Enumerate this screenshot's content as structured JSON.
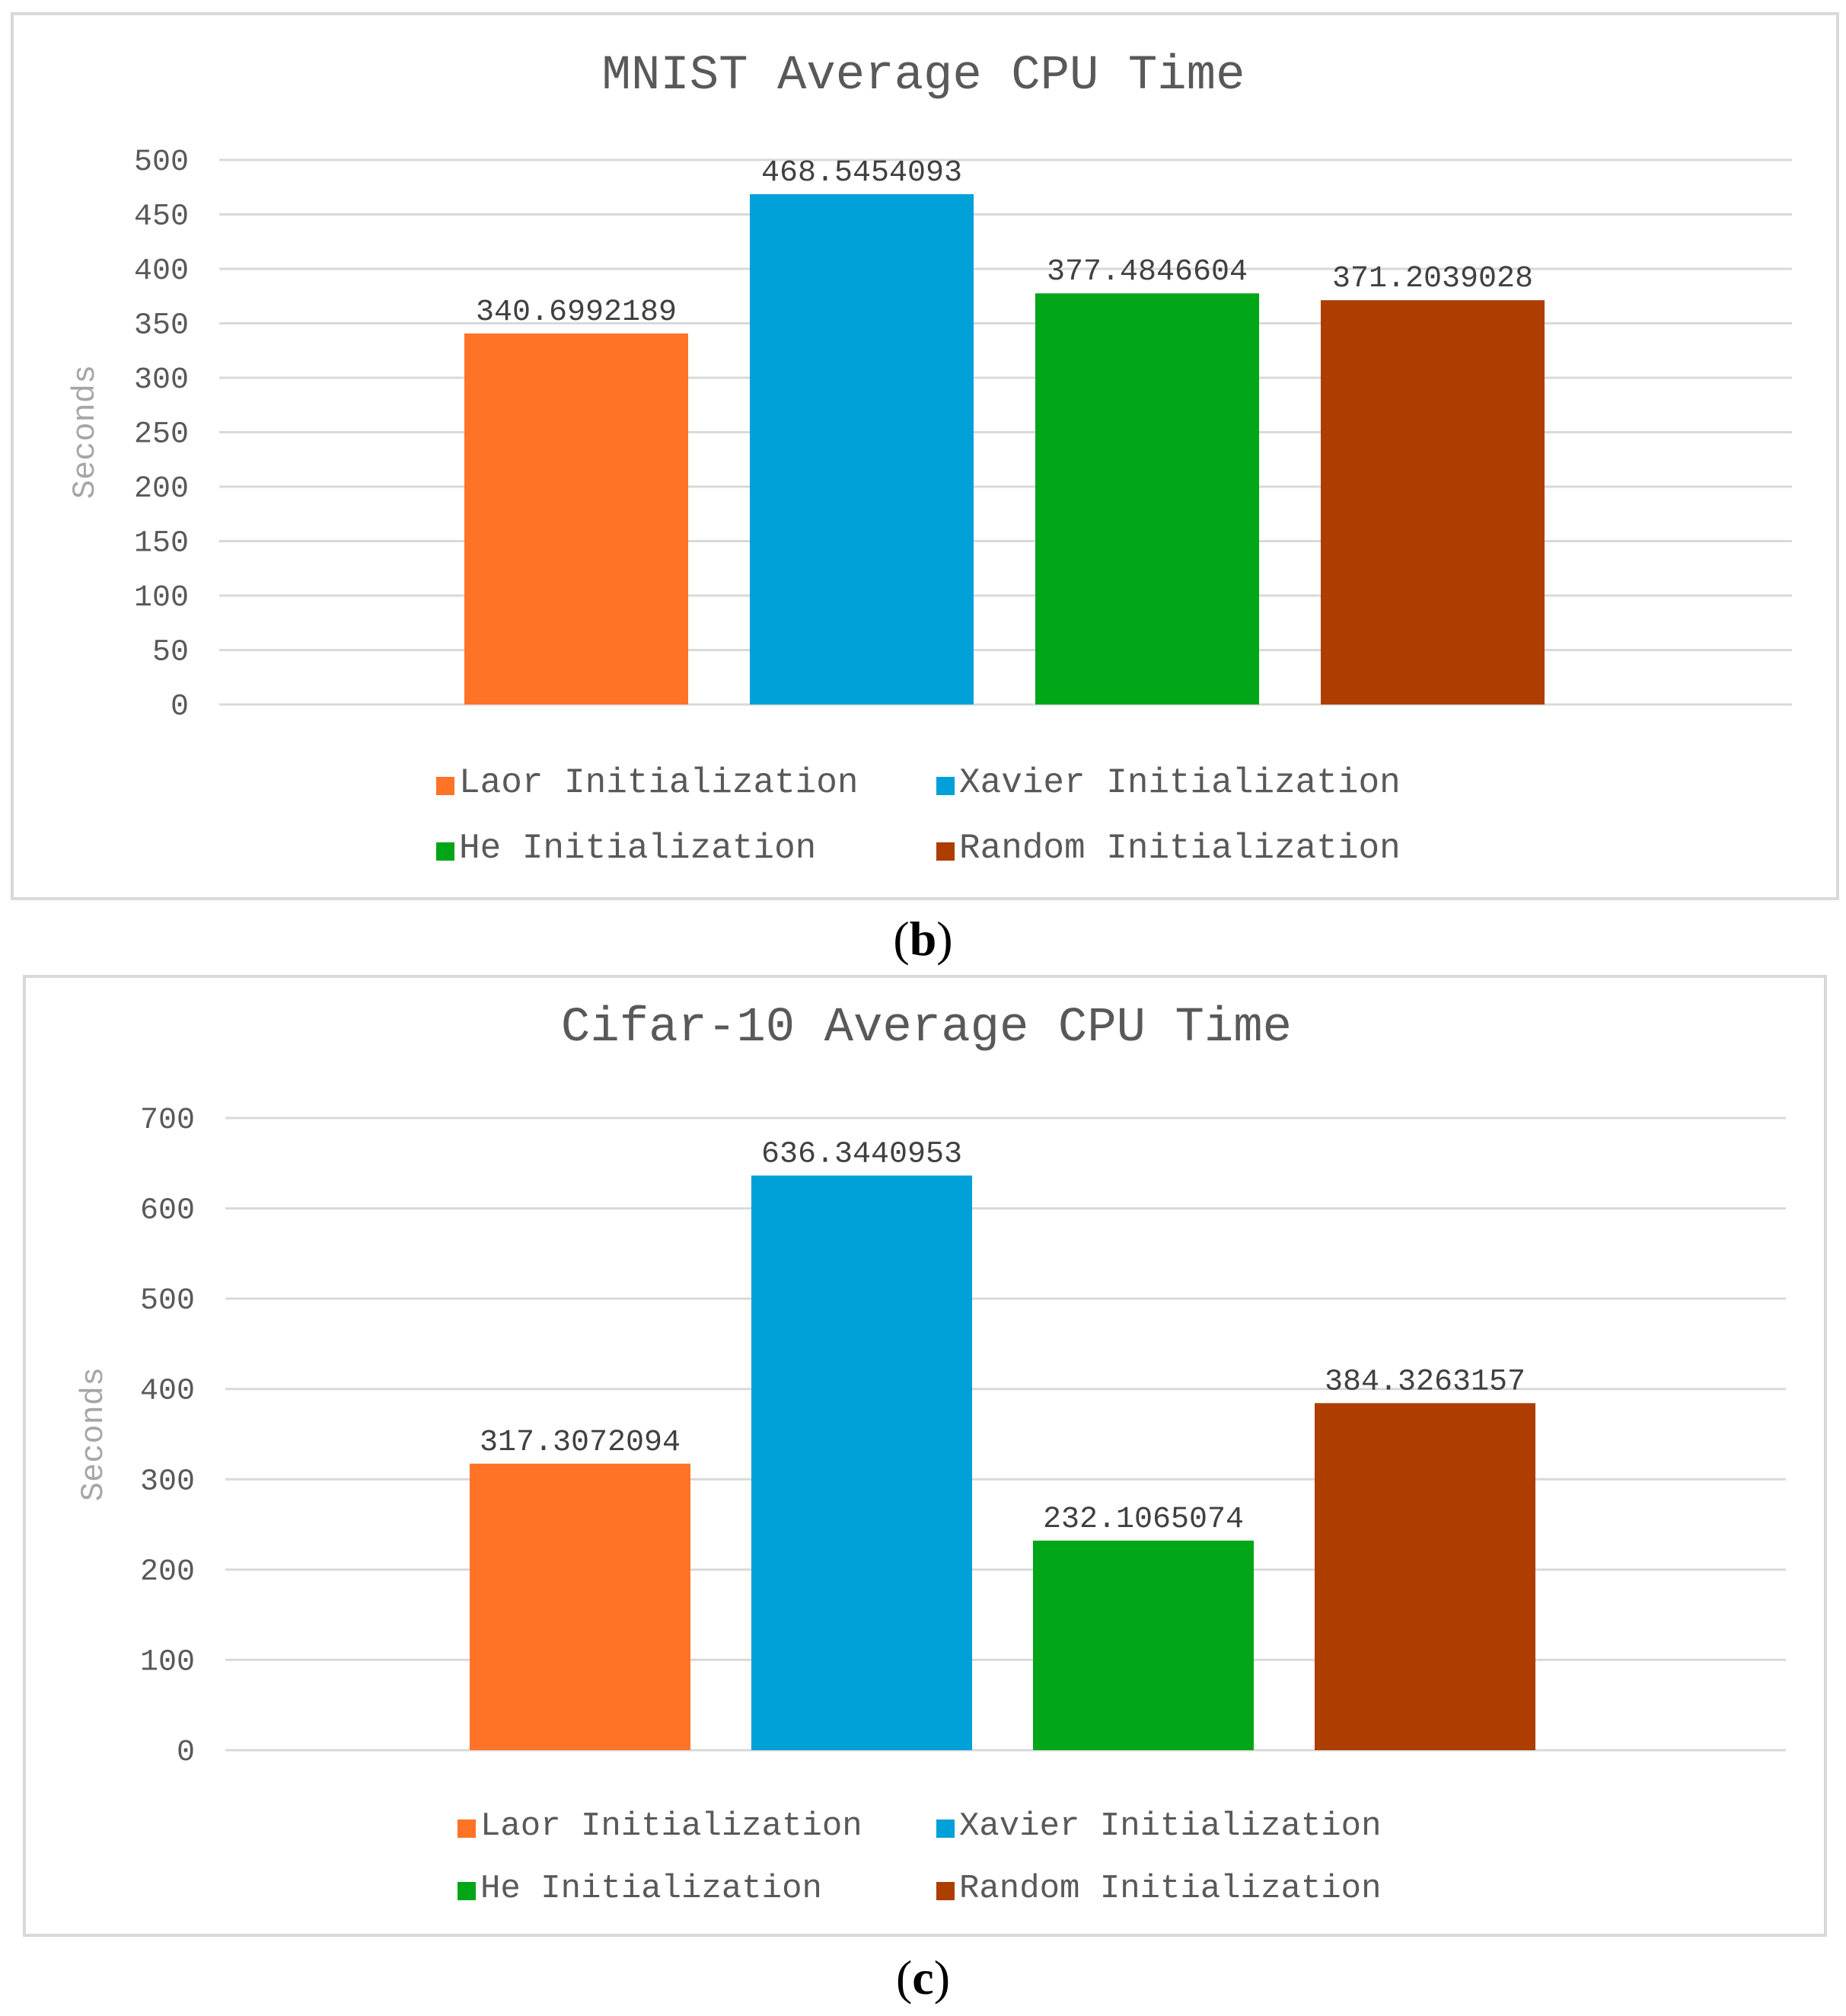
{
  "caption_b": {
    "open": "(",
    "letter": "b",
    "close": ")"
  },
  "caption_c": {
    "open": "(",
    "letter": "c",
    "close": ")"
  },
  "chart_data": [
    {
      "type": "bar",
      "title": "MNIST Average CPU Time",
      "ylabel": "Seconds",
      "xlabel": "",
      "ylim": [
        0,
        500
      ],
      "yticks": [
        0,
        50,
        100,
        150,
        200,
        250,
        300,
        350,
        400,
        450,
        500
      ],
      "grid": true,
      "legend_position": "bottom",
      "series": [
        {
          "name": "Laor Initialization",
          "value": 340.6992189,
          "label": "340.6992189",
          "color": "#ff7326"
        },
        {
          "name": "Xavier Initialization",
          "value": 468.5454093,
          "label": "468.5454093",
          "color": "#00a0d8"
        },
        {
          "name": "He Initialization",
          "value": 377.4846604,
          "label": "377.4846604",
          "color": "#00a618"
        },
        {
          "name": "Random Initialization",
          "value": 371.2039028,
          "label": "371.2039028",
          "color": "#ae3d00"
        }
      ]
    },
    {
      "type": "bar",
      "title": "Cifar-10 Average CPU Time",
      "ylabel": "Seconds",
      "xlabel": "",
      "ylim": [
        0,
        700
      ],
      "yticks": [
        0,
        100,
        200,
        300,
        400,
        500,
        600,
        700
      ],
      "grid": true,
      "legend_position": "bottom",
      "series": [
        {
          "name": "Laor Initialization",
          "value": 317.3072094,
          "label": "317.3072094",
          "color": "#ff7326"
        },
        {
          "name": "Xavier Initialization",
          "value": 636.3440953,
          "label": "636.3440953",
          "color": "#00a0d8"
        },
        {
          "name": "He Initialization",
          "value": 232.1065074,
          "label": "232.1065074",
          "color": "#00a618"
        },
        {
          "name": "Random Initialization",
          "value": 384.3263157,
          "label": "384.3263157",
          "color": "#ae3d00"
        }
      ]
    }
  ]
}
